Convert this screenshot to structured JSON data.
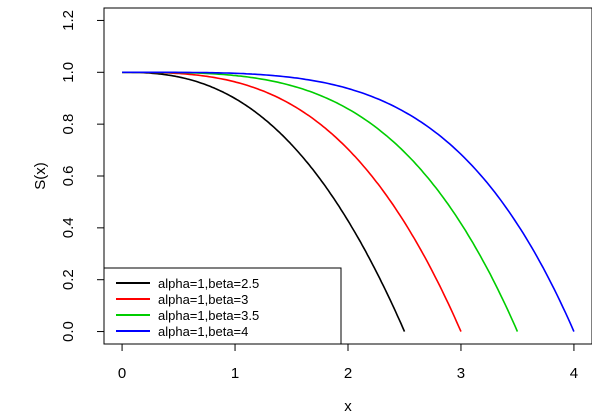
{
  "chart_data": {
    "type": "line",
    "xlabel": "x",
    "ylabel": "S(x)",
    "xlim": [
      -0.16,
      4.16
    ],
    "ylim": [
      -0.048,
      1.248
    ],
    "x_ticks": [
      0,
      1,
      2,
      3,
      4
    ],
    "x_tick_labels": [
      "0",
      "1",
      "2",
      "3",
      "4"
    ],
    "y_ticks": [
      0.0,
      0.2,
      0.4,
      0.6,
      0.8,
      1.0,
      1.2
    ],
    "y_tick_labels": [
      "0.0",
      "0.2",
      "0.4",
      "0.6",
      "0.8",
      "1.0",
      "1.2"
    ],
    "grid": false,
    "legend_position": "bottom-left",
    "series": [
      {
        "name": "alpha=1,beta=2.5",
        "color": "#000000",
        "alpha": 1,
        "beta": 2.5
      },
      {
        "name": "alpha=1,beta=3",
        "color": "#ff0000",
        "alpha": 1,
        "beta": 3
      },
      {
        "name": "alpha=1,beta=3.5",
        "color": "#00cd00",
        "alpha": 1,
        "beta": 3.5
      },
      {
        "name": "alpha=1,beta=4",
        "color": "#0000ff",
        "alpha": 1,
        "beta": 4
      }
    ]
  }
}
